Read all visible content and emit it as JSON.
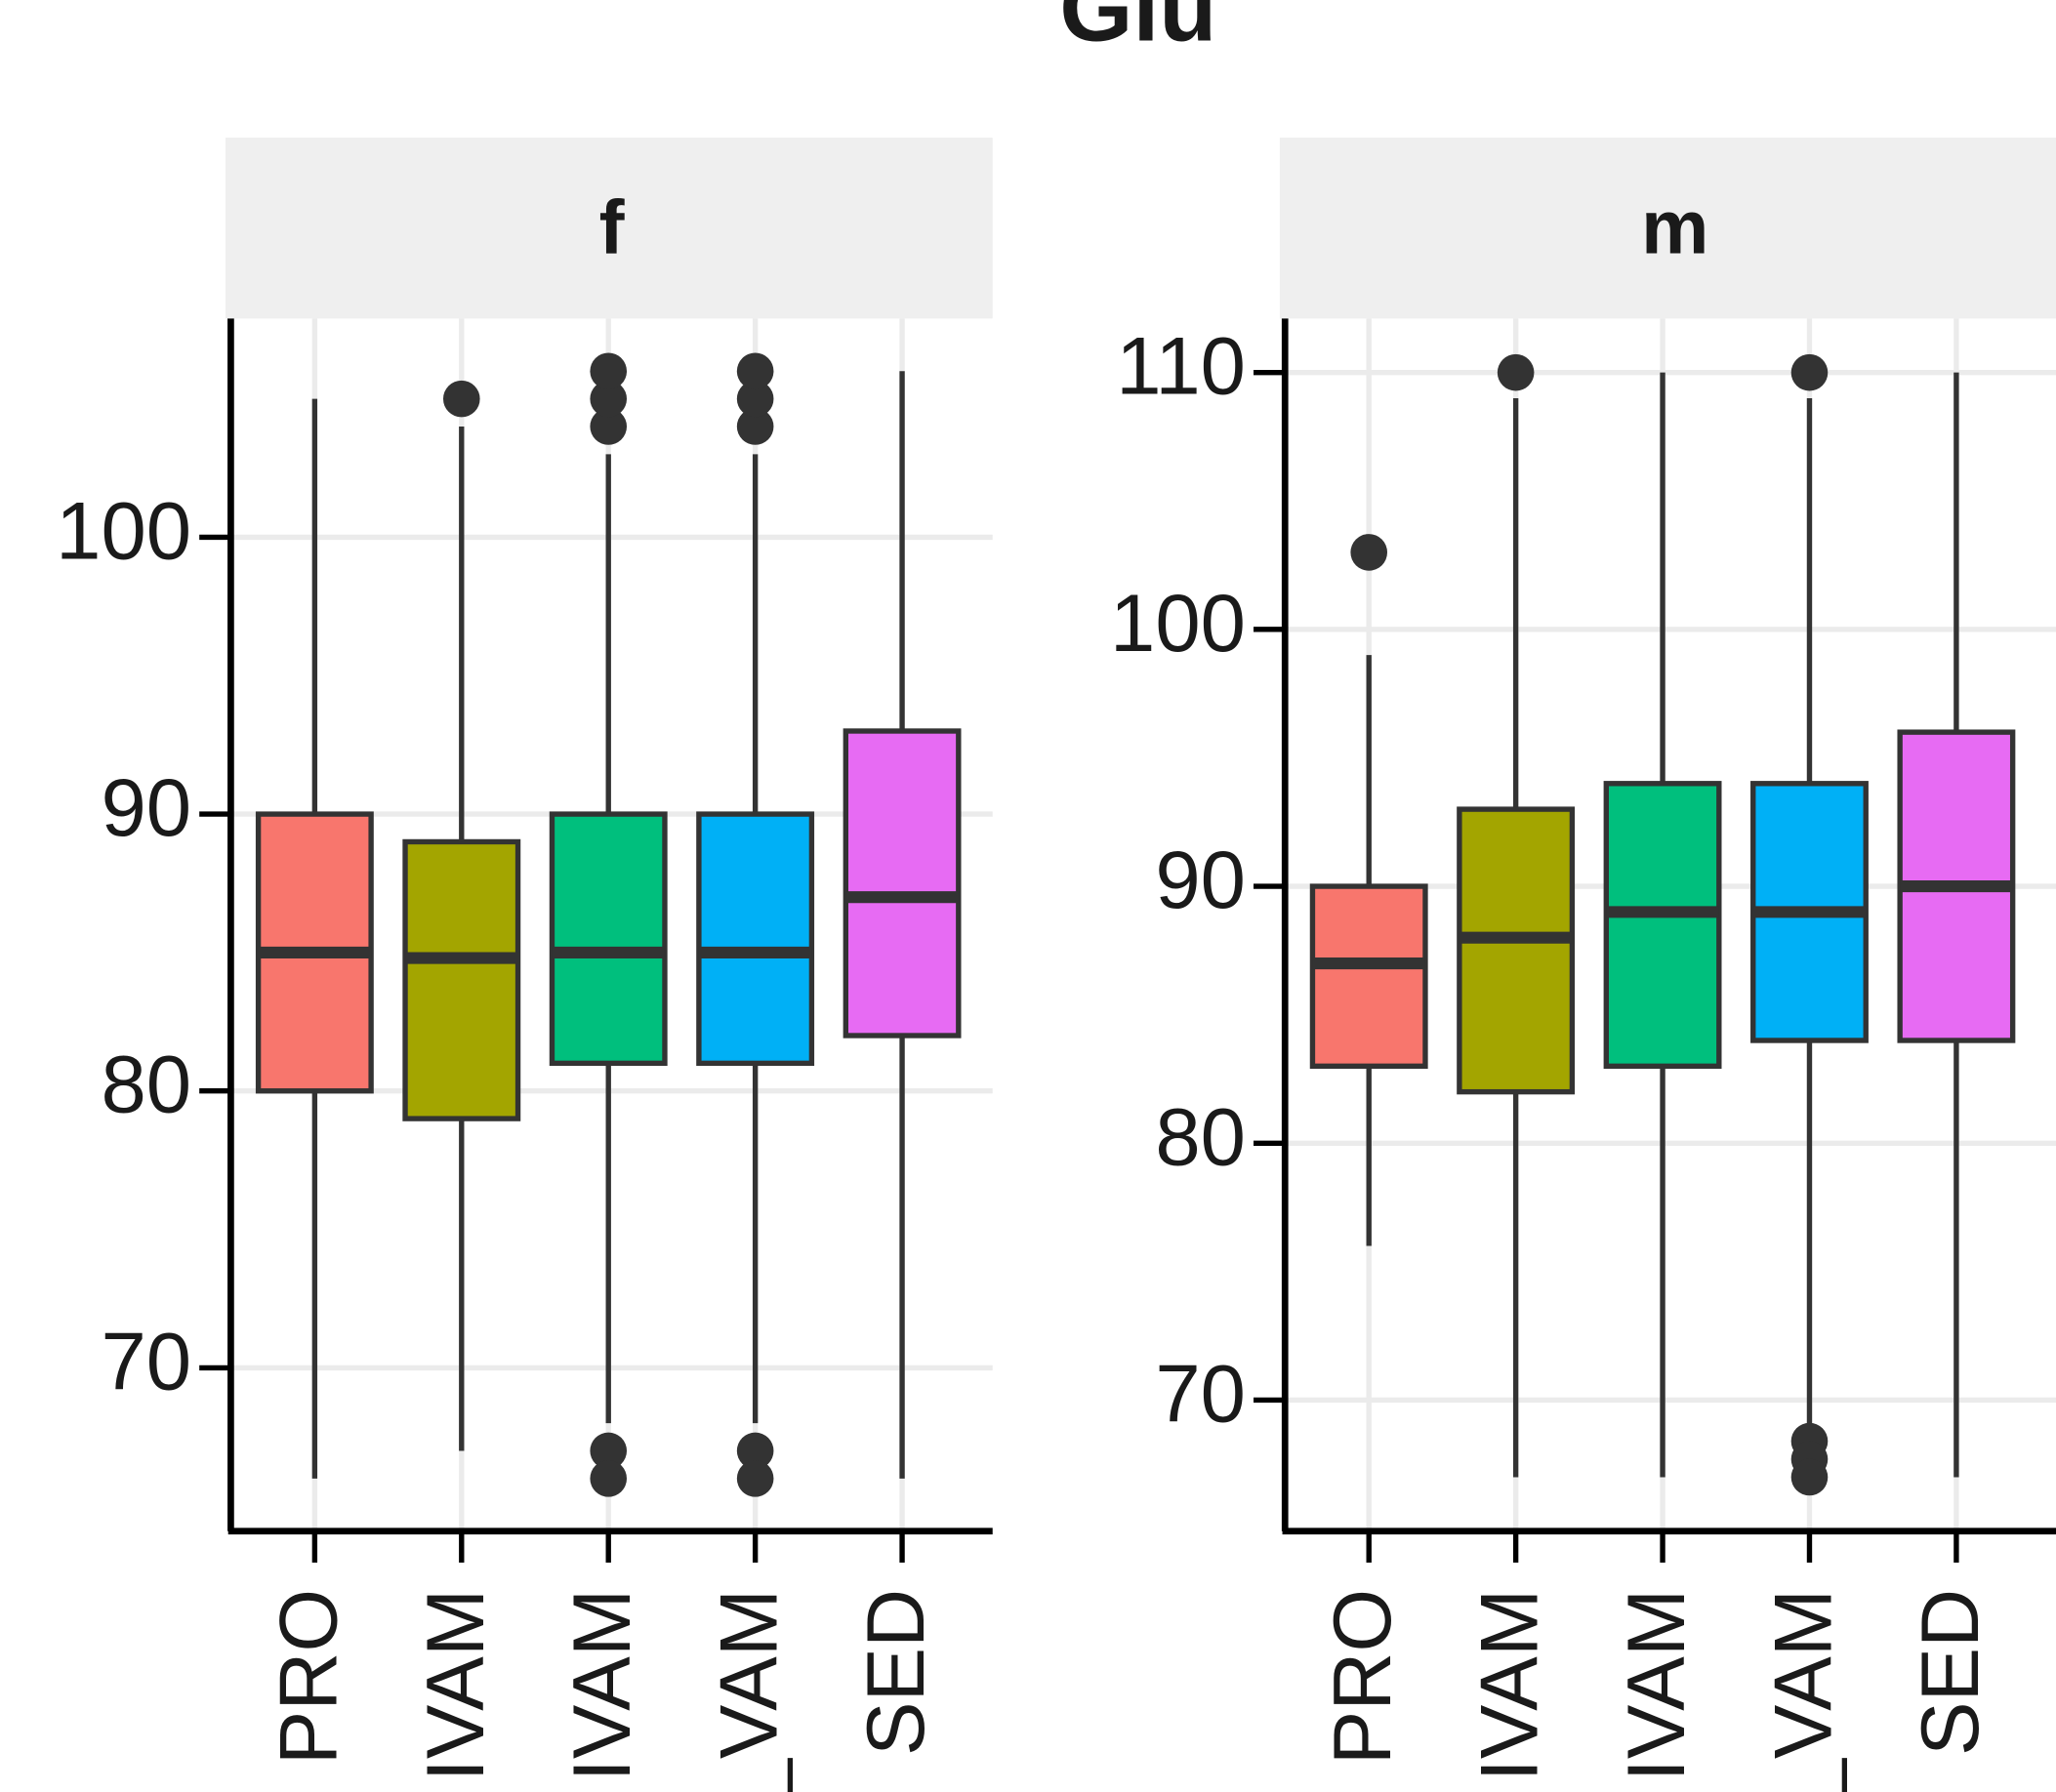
{
  "title": "Glu",
  "chart_data": [
    {
      "type": "box",
      "facet": "f",
      "categories": [
        "PRO",
        "IVAM",
        "IVAM",
        "_VAM",
        "SED"
      ],
      "colors": [
        "#F8766D",
        "#A3A500",
        "#00BF7D",
        "#00B0F6",
        "#E76BF3"
      ],
      "ylim": [
        64.1,
        107.9
      ],
      "yticks": [
        70,
        80,
        90,
        100
      ],
      "grid": true,
      "boxes": [
        {
          "low": 66,
          "q1": 80,
          "median": 85,
          "q3": 90,
          "high": 105,
          "outliers": []
        },
        {
          "low": 67,
          "q1": 79,
          "median": 84.8,
          "q3": 89,
          "high": 104,
          "outliers": [
            105
          ]
        },
        {
          "low": 68,
          "q1": 81,
          "median": 85,
          "q3": 90,
          "high": 103,
          "outliers": [
            104,
            105,
            106,
            67,
            66
          ]
        },
        {
          "low": 68,
          "q1": 81,
          "median": 85,
          "q3": 90,
          "high": 103,
          "outliers": [
            104,
            105,
            106,
            67,
            66
          ]
        },
        {
          "low": 66,
          "q1": 82,
          "median": 87,
          "q3": 93,
          "high": 106,
          "outliers": []
        }
      ]
    },
    {
      "type": "box",
      "facet": "m",
      "categories": [
        "PRO",
        "IVAM",
        "IVAM",
        "_VAM",
        "SED"
      ],
      "colors": [
        "#F8766D",
        "#A3A500",
        "#00BF7D",
        "#00B0F6",
        "#E76BF3"
      ],
      "ylim": [
        64.9,
        112.1
      ],
      "yticks": [
        70,
        80,
        90,
        100,
        110
      ],
      "grid": true,
      "boxes": [
        {
          "low": 76,
          "q1": 83,
          "median": 87,
          "q3": 90,
          "high": 99,
          "outliers": [
            103
          ]
        },
        {
          "low": 67,
          "q1": 82,
          "median": 88,
          "q3": 93,
          "high": 109,
          "outliers": [
            110
          ]
        },
        {
          "low": 67,
          "q1": 83,
          "median": 89,
          "q3": 94,
          "high": 110,
          "outliers": []
        },
        {
          "low": 69,
          "q1": 84,
          "median": 89,
          "q3": 94,
          "high": 109,
          "outliers": [
            110,
            68.4,
            67.7,
            67
          ]
        },
        {
          "low": 67,
          "q1": 84,
          "median": 90,
          "q3": 96,
          "high": 110,
          "outliers": []
        }
      ]
    }
  ]
}
